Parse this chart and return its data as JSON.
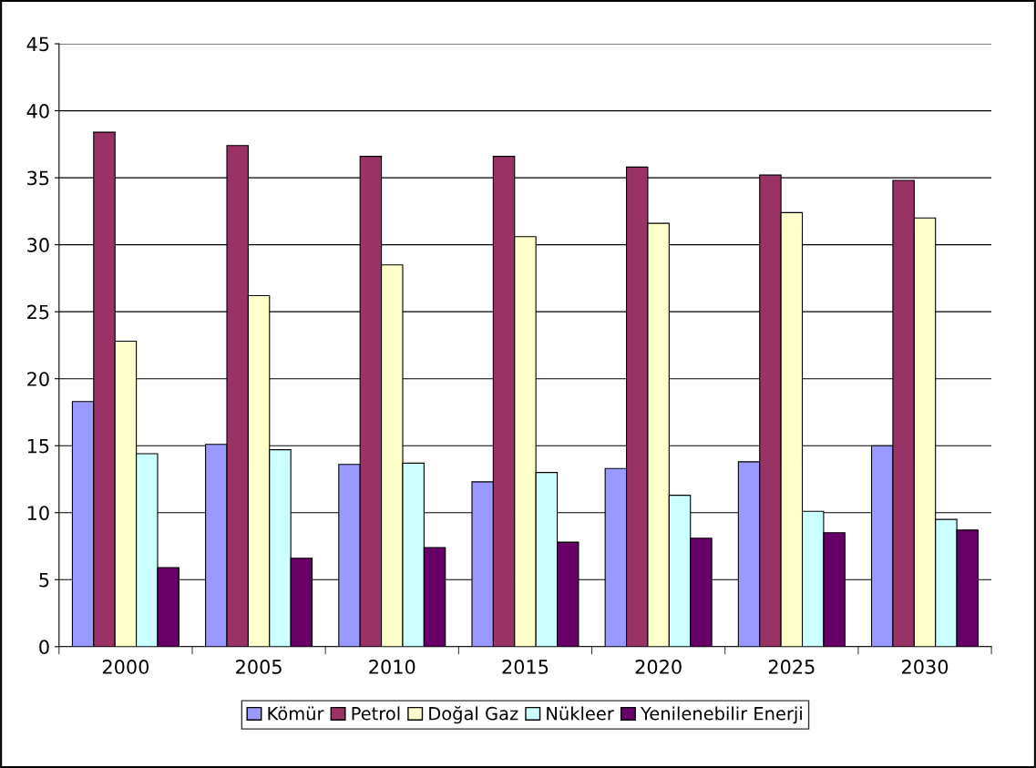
{
  "chart_data": {
    "type": "bar",
    "categories": [
      "2000",
      "2005",
      "2010",
      "2015",
      "2020",
      "2025",
      "2030"
    ],
    "series": [
      {
        "name": "Kömür",
        "color": "#9999ff",
        "values": [
          18.3,
          15.1,
          13.6,
          12.3,
          13.3,
          13.8,
          15.0
        ]
      },
      {
        "name": "Petrol",
        "color": "#993366",
        "values": [
          38.4,
          37.4,
          36.6,
          36.6,
          35.8,
          35.2,
          34.8
        ]
      },
      {
        "name": "Doğal Gaz",
        "color": "#ffffcc",
        "values": [
          22.8,
          26.2,
          28.5,
          30.6,
          31.6,
          32.4,
          32.0
        ]
      },
      {
        "name": "Nükleer",
        "color": "#ccffff",
        "values": [
          14.4,
          14.7,
          13.7,
          13.0,
          11.3,
          10.1,
          9.5
        ]
      },
      {
        "name": "Yenilenebilir Enerji",
        "color": "#660066",
        "values": [
          5.9,
          6.6,
          7.4,
          7.8,
          8.1,
          8.5,
          8.7
        ]
      }
    ],
    "ylim": [
      0,
      45
    ],
    "yticks": [
      0,
      5,
      10,
      15,
      20,
      25,
      30,
      35,
      40,
      45
    ],
    "grid": "y",
    "legend": "bottom"
  }
}
